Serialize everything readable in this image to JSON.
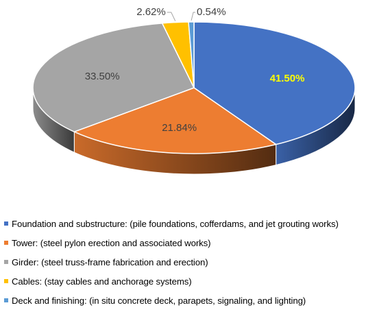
{
  "chart_data": {
    "type": "pie",
    "title": "",
    "series": [
      {
        "name": "Foundation and substructure: (pile foundations, cofferdams, and jet grouting works)",
        "value": 41.5,
        "label": "41.50%",
        "color": "#4472C4",
        "label_color": "#FFFF00"
      },
      {
        "name": "Tower: (steel pylon erection and associated works)",
        "value": 21.84,
        "label": "21.84%",
        "color": "#ED7D31",
        "label_color": "#404040"
      },
      {
        "name": "Girder: (steel truss-frame fabrication and erection)",
        "value": 33.5,
        "label": "33.50%",
        "color": "#A5A5A5",
        "label_color": "#404040"
      },
      {
        "name": "Cables: (stay cables and anchorage systems)",
        "value": 2.62,
        "label": "2.62%",
        "color": "#FFC000",
        "label_color": "#404040"
      },
      {
        "name": "Deck and finishing: (in situ concrete deck, parapets, signaling, and lighting)",
        "value": 0.54,
        "label": "0.54%",
        "color": "#5B9BD5",
        "label_color": "#404040"
      }
    ],
    "style": "3d-pie",
    "legend_position": "bottom"
  }
}
